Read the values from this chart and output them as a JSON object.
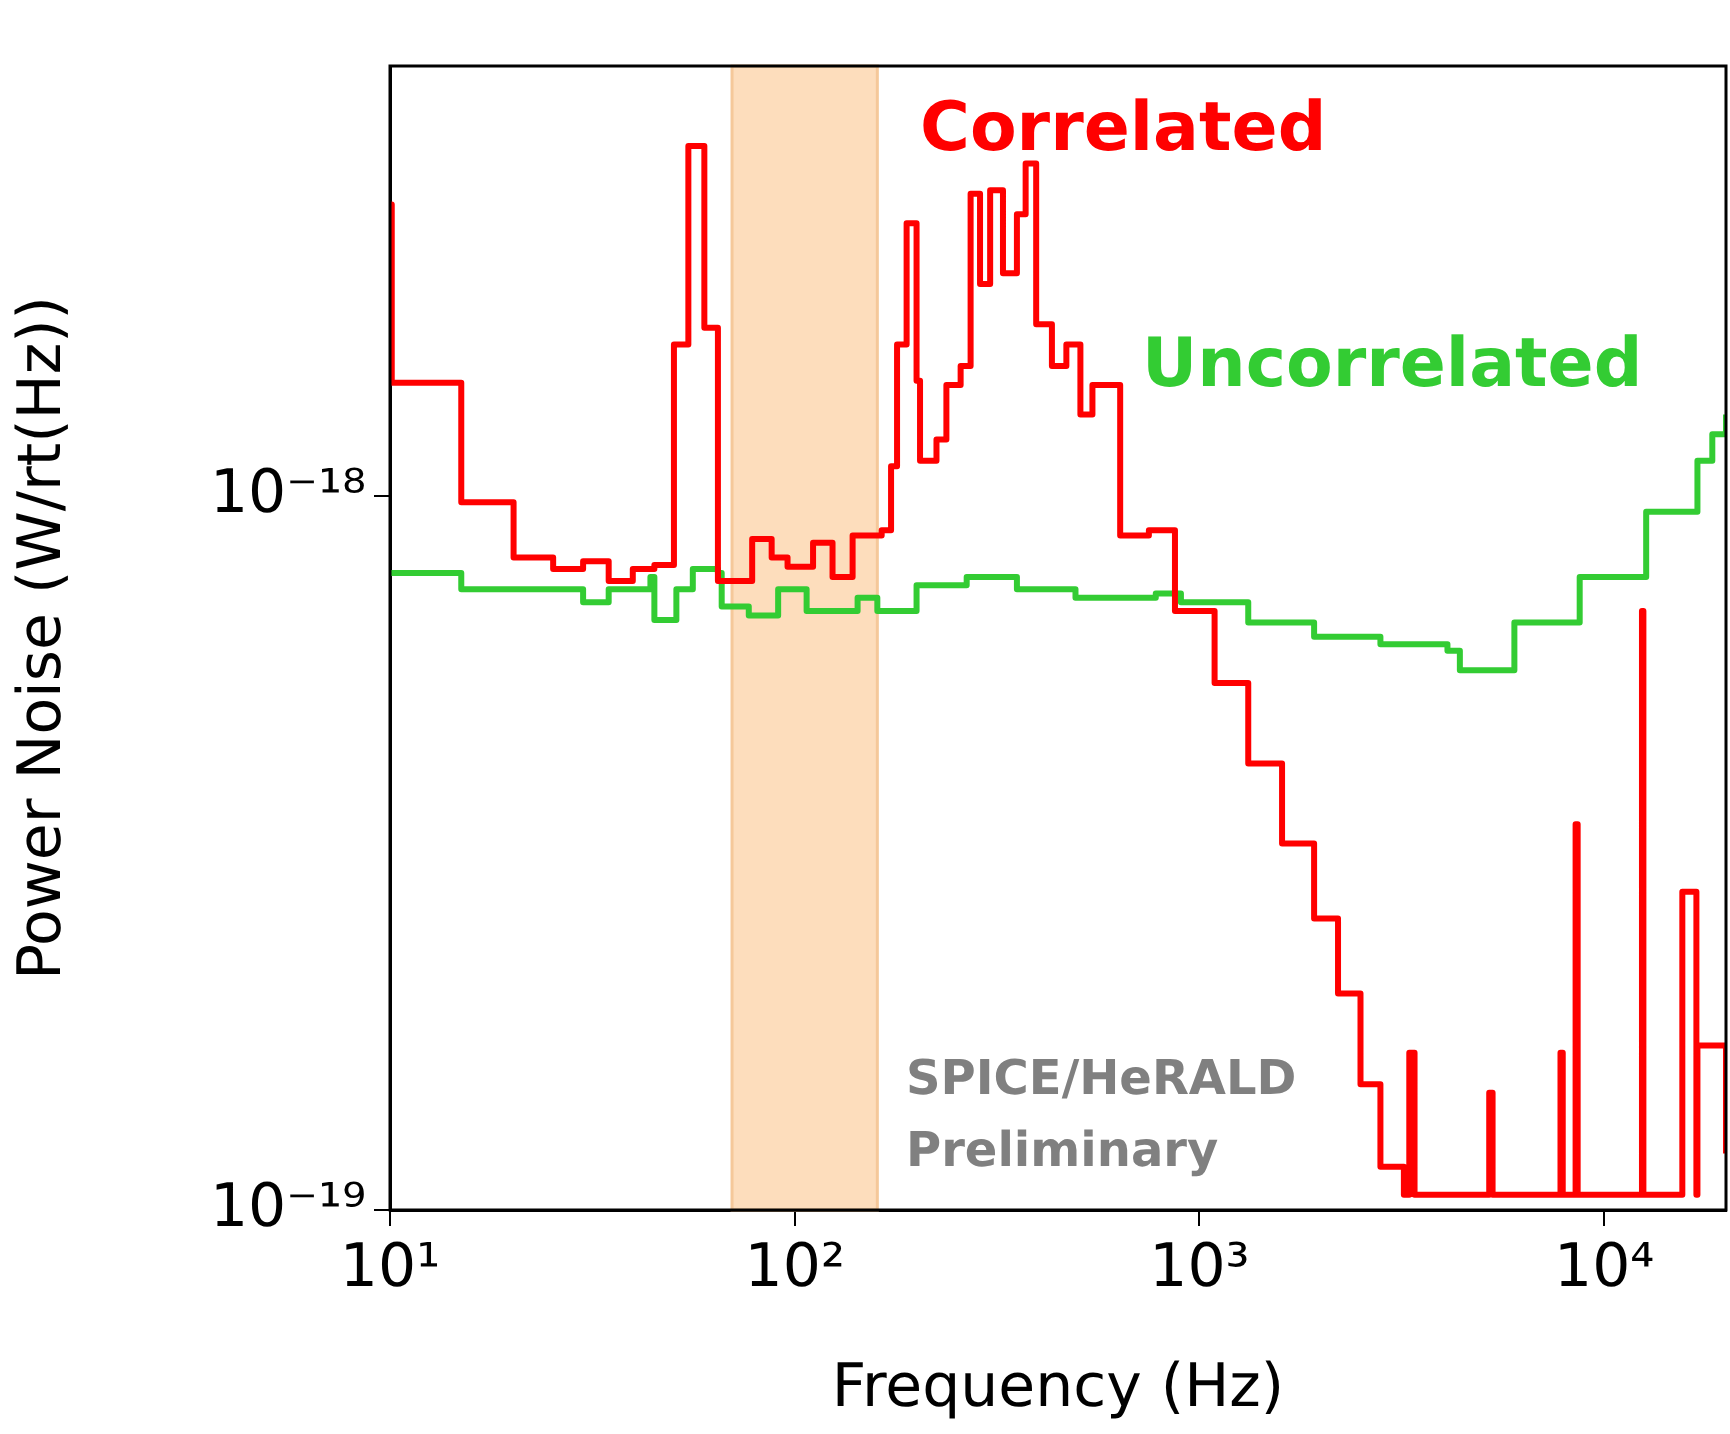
{
  "chart_data": {
    "type": "step",
    "xlabel": "Frequency (Hz)",
    "ylabel": "Power Noise (W/rt(Hz))",
    "log": "xy",
    "grid": false,
    "legend": false,
    "xlim": [
      10,
      20000
    ],
    "xticks": [
      {
        "value": 10,
        "label": "10¹"
      },
      {
        "value": 100,
        "label": "10²"
      },
      {
        "value": 1000,
        "label": "10³"
      },
      {
        "value": 10000,
        "label": "10⁴"
      }
    ],
    "ylim": [
      1e-19,
      4e-18
    ],
    "yticks": [
      {
        "value": 1e-19,
        "label": "10⁻¹⁹"
      },
      {
        "value": 1e-18,
        "label": "10⁻¹⁸"
      }
    ],
    "bands": [
      {
        "axis": "x",
        "from": 70,
        "to": 160,
        "color": "#fdd9b5"
      }
    ],
    "annotations": [
      "SPICE/HeRALD Preliminary"
    ],
    "series": [
      {
        "name": "Correlated",
        "color": "#ff0000",
        "x": [
          10,
          10.1,
          15,
          20.2,
          25.3,
          30,
          34.7,
          39.8,
          45,
          50.3,
          54.6,
          59.8,
          64.6,
          78.5,
          87.7,
          96,
          111,
          124,
          139,
          164,
          173,
          179,
          189,
          200,
          204,
          224,
          237,
          257,
          272,
          287,
          304,
          327,
          354,
          372,
          395,
          432,
          469,
          508,
          544,
          637,
          750,
          870,
          1090,
          1320,
          1600,
          1920,
          2200,
          2500,
          2800,
          3200,
          3300,
          3400,
          5100,
          5200,
          5300,
          7700,
          7800,
          7900,
          8400,
          8500,
          8600,
          12300,
          12400,
          12500,
          15500,
          15600,
          16900,
          17000,
          20000
        ],
        "values": [
          2.56e-18,
          1.44e-18,
          9.8e-19,
          8.2e-19,
          7.9e-19,
          8.1e-19,
          7.6e-19,
          7.9e-19,
          8e-19,
          1.63e-18,
          3.09e-18,
          1.72e-18,
          7.6e-19,
          8.7e-19,
          8.2e-19,
          7.96e-19,
          8.6e-19,
          7.7e-19,
          8.8e-19,
          8.95e-19,
          1.1e-18,
          1.63e-18,
          2.41e-18,
          1.45e-18,
          1.12e-18,
          1.2e-18,
          1.43e-18,
          1.52e-18,
          2.65e-18,
          1.98e-18,
          2.68e-18,
          2.05e-18,
          2.48e-18,
          2.92e-18,
          1.74e-18,
          1.52e-18,
          1.63e-18,
          1.3e-18,
          1.43e-18,
          8.8e-19,
          8.95e-19,
          6.9e-19,
          5.47e-19,
          4.22e-19,
          3.26e-19,
          2.56e-19,
          2.01e-19,
          1.5e-19,
          1.15e-19,
          1.05e-19,
          1.66e-19,
          1.05e-19,
          1.05e-19,
          1.46e-19,
          1.05e-19,
          1.05e-19,
          1.66e-19,
          1.05e-19,
          1.05e-19,
          3.47e-19,
          1.05e-19,
          1.05e-19,
          6.9e-19,
          1.05e-19,
          1.05e-19,
          2.79e-19,
          1.05e-19,
          1.7e-19,
          1.2e-19
        ]
      },
      {
        "name": "Uncorrelated",
        "color": "#33cc33",
        "x": [
          10,
          15,
          30,
          34.7,
          44,
          45,
          51,
          56,
          64.6,
          66,
          77,
          91,
          107,
          143,
          160,
          200,
          266,
          354,
          494,
          780,
          900,
          1320,
          1920,
          2800,
          4100,
          4400,
          6000,
          8700,
          12700,
          17000,
          18500,
          20000
        ],
        "values": [
          7.8e-19,
          7.4e-19,
          7.1e-19,
          7.4e-19,
          7.7e-19,
          6.7e-19,
          7.4e-19,
          7.9e-19,
          7.8e-19,
          7e-19,
          6.8e-19,
          7.4e-19,
          6.9e-19,
          7.2e-19,
          6.9e-19,
          7.5e-19,
          7.7e-19,
          7.4e-19,
          7.2e-19,
          7.3e-19,
          7.1e-19,
          6.65e-19,
          6.35e-19,
          6.2e-19,
          6.07e-19,
          5.7e-19,
          6.65e-19,
          7.7e-19,
          9.5e-19,
          1.12e-18,
          1.22e-18,
          1.3e-18
        ]
      }
    ]
  }
}
